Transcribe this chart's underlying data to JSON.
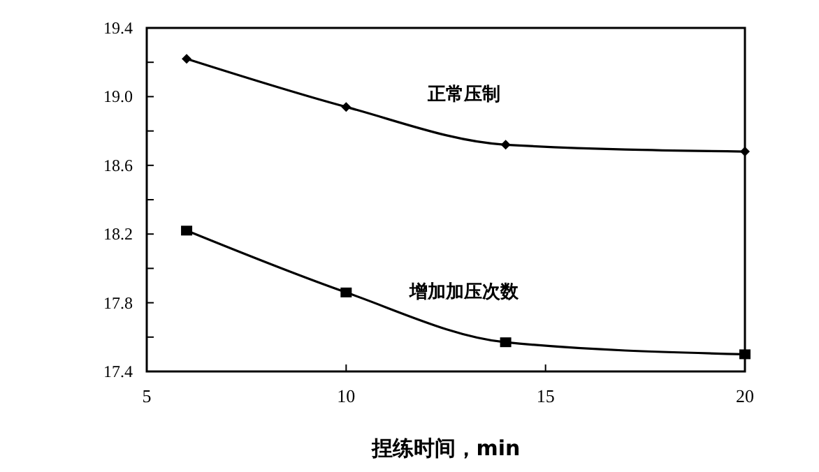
{
  "chart_data": {
    "type": "line",
    "xlabel": "捏练时间，min",
    "x": [
      6,
      10,
      14,
      20
    ],
    "series": [
      {
        "name": "正常压制",
        "color": "#000000",
        "marker": "diamond",
        "values": [
          19.22,
          18.94,
          18.72,
          18.68
        ]
      },
      {
        "name": "增加加压次数",
        "color": "#000000",
        "marker": "square",
        "values": [
          18.22,
          17.86,
          17.57,
          17.5
        ]
      }
    ],
    "xlim": [
      5,
      20
    ],
    "xticks": [
      5,
      10,
      15,
      20
    ],
    "ylim": [
      17.4,
      19.4
    ],
    "yticks": [
      17.4,
      {
        "value": 17.6,
        "label": null
      },
      17.8,
      {
        "value": 18.0,
        "label": null
      },
      18.2,
      {
        "value": 18.4,
        "label": null
      },
      18.6,
      {
        "value": 18.8,
        "label": null
      },
      {
        "value": 19.0,
        "label": "19.0"
      },
      {
        "value": 19.2,
        "label": null
      },
      19.4
    ],
    "line_style": "solid"
  }
}
